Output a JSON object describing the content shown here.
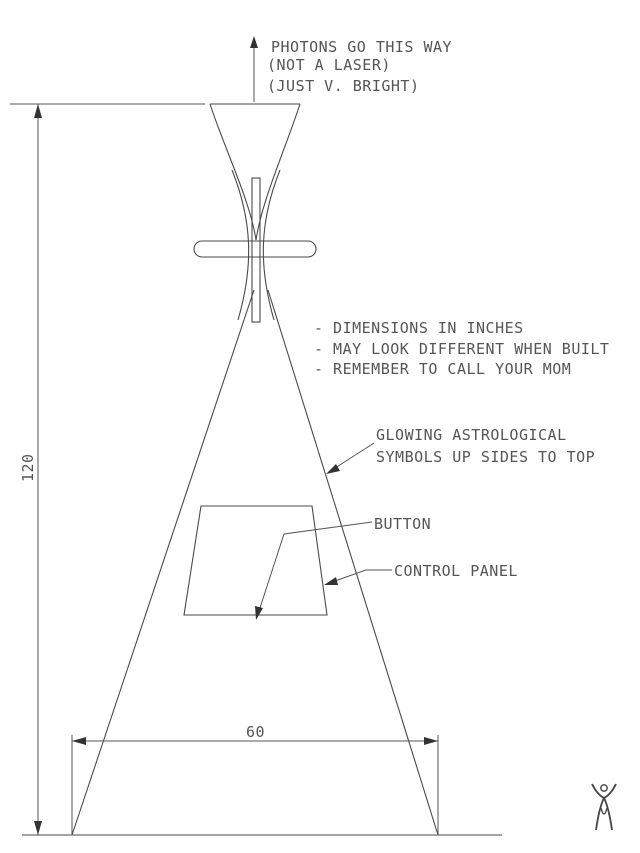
{
  "photons_note": {
    "line1": "PHOTONS GO THIS WAY",
    "line2": "(NOT A LASER)",
    "line3": "(JUST V. BRIGHT)"
  },
  "notes": {
    "line1": "- DIMENSIONS IN INCHES",
    "line2": "- MAY LOOK DIFFERENT WHEN BUILT",
    "line3": "- REMEMBER TO CALL YOUR MOM"
  },
  "symbols_callout": {
    "line1": "GLOWING ASTROLOGICAL",
    "line2": "SYMBOLS UP SIDES TO TOP"
  },
  "button_label": "BUTTON",
  "control_panel_label": "CONTROL PANEL",
  "dimensions": {
    "height": "120",
    "width": "60"
  },
  "logo_icon": "stick-figure-logo"
}
